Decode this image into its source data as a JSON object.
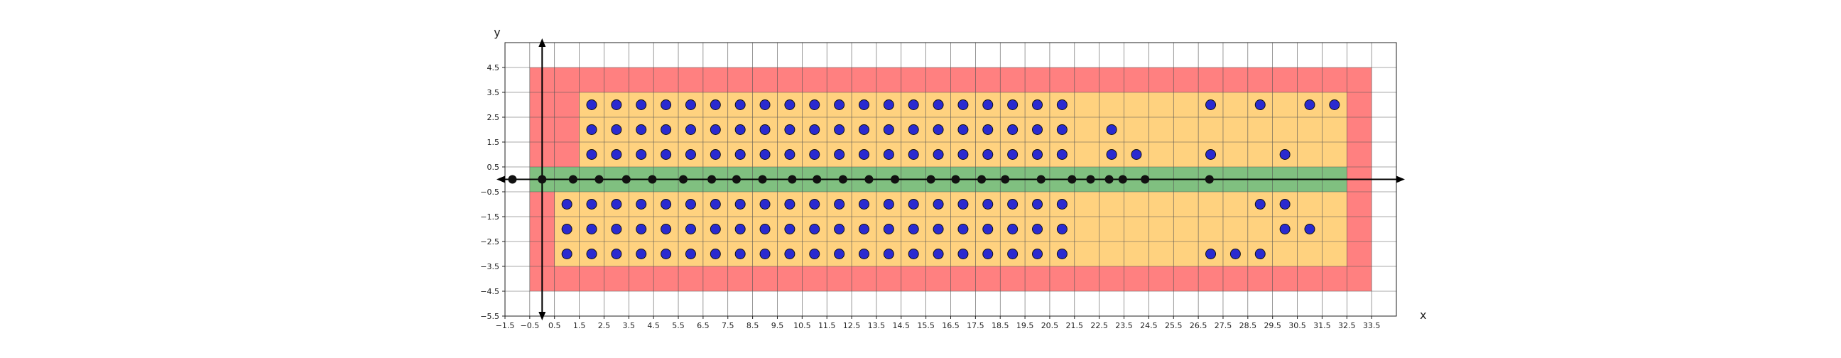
{
  "chart_data": {
    "type": "scatter",
    "title": "",
    "xlabel": "x",
    "ylabel": "y",
    "xlim": [
      -1.5,
      34.5
    ],
    "ylim": [
      -5.5,
      5.5
    ],
    "grid": true,
    "xticks": [
      "-1.5",
      "-0.5",
      "0.5",
      "1.5",
      "2.5",
      "3.5",
      "4.5",
      "5.5",
      "6.5",
      "7.5",
      "8.5",
      "9.5",
      "10.5",
      "11.5",
      "12.5",
      "13.5",
      "14.5",
      "15.5",
      "16.5",
      "17.5",
      "18.5",
      "19.5",
      "20.5",
      "21.5",
      "22.5",
      "23.5",
      "24.5",
      "25.5",
      "26.5",
      "27.5",
      "28.5",
      "29.5",
      "30.5",
      "31.5",
      "32.5",
      "33.5"
    ],
    "yticks": [
      "-5.5",
      "-4.5",
      "-3.5",
      "-2.5",
      "-1.5",
      "-0.5",
      "0.5",
      "1.5",
      "2.5",
      "3.5",
      "4.5"
    ],
    "regions": [
      {
        "color": "#ff8080",
        "x": [
          -0.5,
          33.5
        ],
        "y": [
          -4.5,
          4.5
        ]
      },
      {
        "color": "#ffd27f",
        "x": [
          1.5,
          32.5
        ],
        "y": [
          0.5,
          3.5
        ]
      },
      {
        "color": "#ffd27f",
        "x": [
          0.5,
          32.5
        ],
        "y": [
          -3.5,
          -0.5
        ]
      },
      {
        "color": "#80c080",
        "x": [
          -0.5,
          32.5
        ],
        "y": [
          -0.5,
          0.5
        ]
      }
    ],
    "series": [
      {
        "color": "#2a2ad0",
        "points": [
          [
            2,
            3
          ],
          [
            3,
            3
          ],
          [
            4,
            3
          ],
          [
            5,
            3
          ],
          [
            6,
            3
          ],
          [
            7,
            3
          ],
          [
            8,
            3
          ],
          [
            9,
            3
          ],
          [
            10,
            3
          ],
          [
            11,
            3
          ],
          [
            12,
            3
          ],
          [
            13,
            3
          ],
          [
            14,
            3
          ],
          [
            15,
            3
          ],
          [
            16,
            3
          ],
          [
            17,
            3
          ],
          [
            18,
            3
          ],
          [
            19,
            3
          ],
          [
            20,
            3
          ],
          [
            21,
            3
          ],
          [
            27,
            3
          ],
          [
            29,
            3
          ],
          [
            31,
            3
          ],
          [
            32,
            3
          ],
          [
            2,
            2
          ],
          [
            3,
            2
          ],
          [
            4,
            2
          ],
          [
            5,
            2
          ],
          [
            6,
            2
          ],
          [
            7,
            2
          ],
          [
            8,
            2
          ],
          [
            9,
            2
          ],
          [
            10,
            2
          ],
          [
            11,
            2
          ],
          [
            12,
            2
          ],
          [
            13,
            2
          ],
          [
            14,
            2
          ],
          [
            15,
            2
          ],
          [
            16,
            2
          ],
          [
            17,
            2
          ],
          [
            18,
            2
          ],
          [
            19,
            2
          ],
          [
            20,
            2
          ],
          [
            21,
            2
          ],
          [
            23,
            2
          ],
          [
            2,
            1
          ],
          [
            3,
            1
          ],
          [
            4,
            1
          ],
          [
            5,
            1
          ],
          [
            6,
            1
          ],
          [
            7,
            1
          ],
          [
            8,
            1
          ],
          [
            9,
            1
          ],
          [
            10,
            1
          ],
          [
            11,
            1
          ],
          [
            12,
            1
          ],
          [
            13,
            1
          ],
          [
            14,
            1
          ],
          [
            15,
            1
          ],
          [
            16,
            1
          ],
          [
            17,
            1
          ],
          [
            18,
            1
          ],
          [
            19,
            1
          ],
          [
            20,
            1
          ],
          [
            21,
            1
          ],
          [
            23,
            1
          ],
          [
            24,
            1
          ],
          [
            27,
            1
          ],
          [
            30,
            1
          ],
          [
            1,
            -1
          ],
          [
            2,
            -1
          ],
          [
            3,
            -1
          ],
          [
            4,
            -1
          ],
          [
            5,
            -1
          ],
          [
            6,
            -1
          ],
          [
            7,
            -1
          ],
          [
            8,
            -1
          ],
          [
            9,
            -1
          ],
          [
            10,
            -1
          ],
          [
            11,
            -1
          ],
          [
            12,
            -1
          ],
          [
            13,
            -1
          ],
          [
            14,
            -1
          ],
          [
            15,
            -1
          ],
          [
            16,
            -1
          ],
          [
            17,
            -1
          ],
          [
            18,
            -1
          ],
          [
            19,
            -1
          ],
          [
            20,
            -1
          ],
          [
            21,
            -1
          ],
          [
            29,
            -1
          ],
          [
            30,
            -1
          ],
          [
            1,
            -2
          ],
          [
            2,
            -2
          ],
          [
            3,
            -2
          ],
          [
            4,
            -2
          ],
          [
            5,
            -2
          ],
          [
            6,
            -2
          ],
          [
            7,
            -2
          ],
          [
            8,
            -2
          ],
          [
            9,
            -2
          ],
          [
            10,
            -2
          ],
          [
            11,
            -2
          ],
          [
            12,
            -2
          ],
          [
            13,
            -2
          ],
          [
            14,
            -2
          ],
          [
            15,
            -2
          ],
          [
            16,
            -2
          ],
          [
            17,
            -2
          ],
          [
            18,
            -2
          ],
          [
            19,
            -2
          ],
          [
            20,
            -2
          ],
          [
            21,
            -2
          ],
          [
            30,
            -2
          ],
          [
            31,
            -2
          ],
          [
            1,
            -3
          ],
          [
            2,
            -3
          ],
          [
            3,
            -3
          ],
          [
            4,
            -3
          ],
          [
            5,
            -3
          ],
          [
            6,
            -3
          ],
          [
            7,
            -3
          ],
          [
            8,
            -3
          ],
          [
            9,
            -3
          ],
          [
            10,
            -3
          ],
          [
            11,
            -3
          ],
          [
            12,
            -3
          ],
          [
            13,
            -3
          ],
          [
            14,
            -3
          ],
          [
            15,
            -3
          ],
          [
            16,
            -3
          ],
          [
            17,
            -3
          ],
          [
            18,
            -3
          ],
          [
            19,
            -3
          ],
          [
            20,
            -3
          ],
          [
            21,
            -3
          ],
          [
            27,
            -3
          ],
          [
            28,
            -3
          ],
          [
            29,
            -3
          ]
        ]
      },
      {
        "color": "#111111",
        "points": [
          [
            -1.2,
            0
          ],
          [
            0,
            0
          ],
          [
            1.25,
            0
          ],
          [
            2.3,
            0
          ],
          [
            3.4,
            0
          ],
          [
            4.45,
            0
          ],
          [
            5.7,
            0
          ],
          [
            6.85,
            0
          ],
          [
            7.85,
            0
          ],
          [
            8.9,
            0
          ],
          [
            10.1,
            0
          ],
          [
            11.1,
            0
          ],
          [
            12.15,
            0
          ],
          [
            13.2,
            0
          ],
          [
            14.25,
            0
          ],
          [
            15.7,
            0
          ],
          [
            16.7,
            0
          ],
          [
            17.75,
            0
          ],
          [
            18.7,
            0
          ],
          [
            20.15,
            0
          ],
          [
            21.4,
            0
          ],
          [
            22.15,
            0
          ],
          [
            22.9,
            0
          ],
          [
            23.45,
            0
          ],
          [
            24.35,
            0
          ],
          [
            26.95,
            0
          ]
        ]
      }
    ]
  }
}
